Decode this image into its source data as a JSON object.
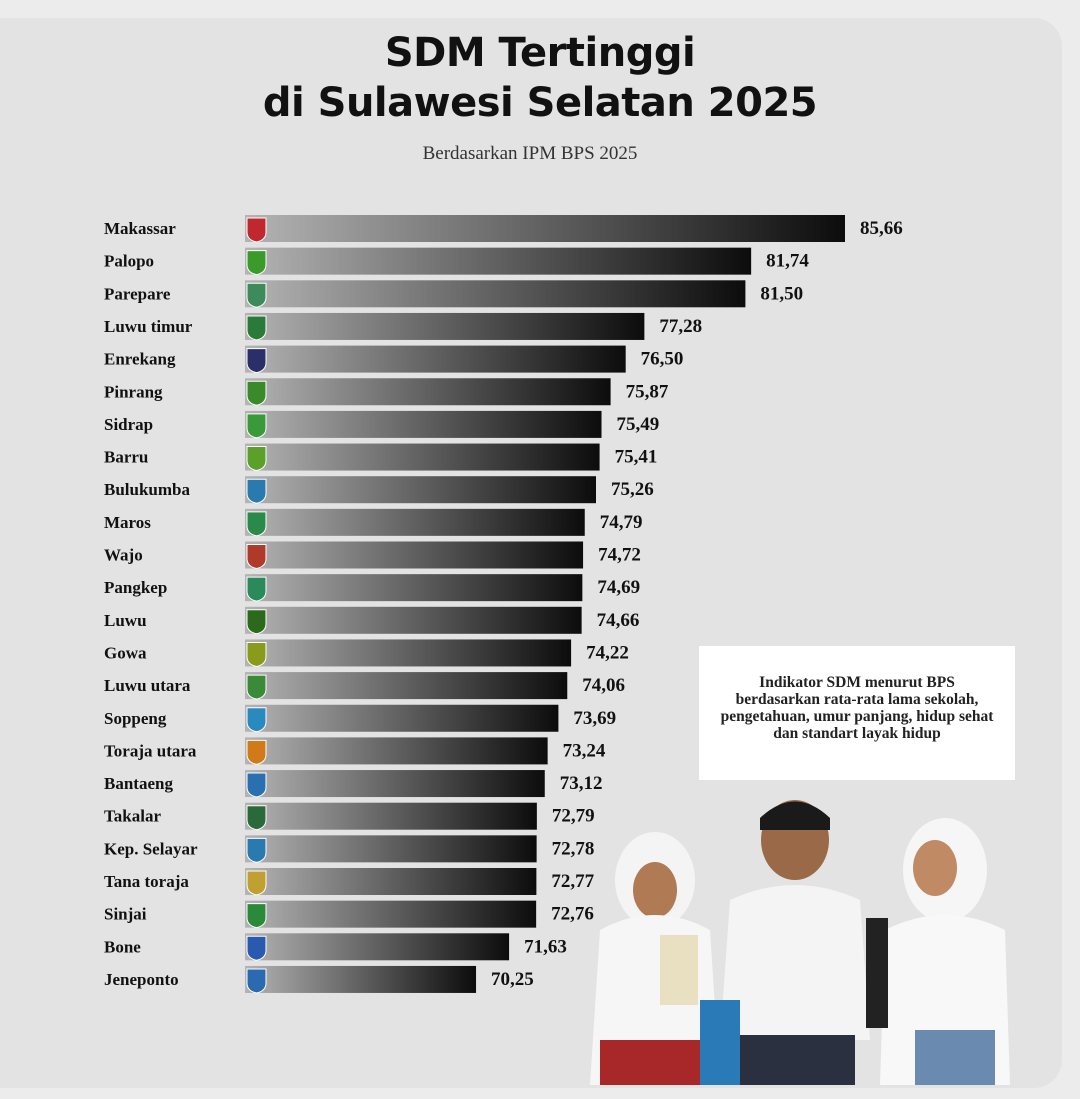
{
  "chart_data": {
    "type": "bar",
    "orientation": "horizontal",
    "title": "SDM Tertinggi\ndi Sulawesi Selatan 2025",
    "title_lines": [
      "SDM Tertinggi",
      "di Sulawesi Selatan 2025"
    ],
    "subtitle": "Berdasarkan IPM BPS 2025",
    "categories": [
      "Makassar",
      "Palopo",
      "Parepare",
      "Luwu timur",
      "Enrekang",
      "Pinrang",
      "Sidrap",
      "Barru",
      "Bulukumba",
      "Maros",
      "Wajo",
      "Pangkep",
      "Luwu",
      "Gowa",
      "Luwu utara",
      "Soppeng",
      "Toraja utara",
      "Bantaeng",
      "Takalar",
      "Kep. Selayar",
      "Tana toraja",
      "Sinjai",
      "Bone",
      "Jeneponto"
    ],
    "values": [
      85.66,
      81.74,
      81.5,
      77.28,
      76.5,
      75.87,
      75.49,
      75.41,
      75.26,
      74.79,
      74.72,
      74.69,
      74.66,
      74.22,
      74.06,
      73.69,
      73.24,
      73.12,
      72.79,
      72.78,
      72.77,
      72.76,
      71.63,
      70.25
    ],
    "value_labels": [
      "85,66",
      "81,74",
      "81,50",
      "77,28",
      "76,50",
      "75,87",
      "75,49",
      "75,41",
      "75,26",
      "74,79",
      "74,72",
      "74,69",
      "74,66",
      "74,22",
      "74,06",
      "73,69",
      "73,24",
      "73,12",
      "72,79",
      "72,78",
      "72,77",
      "72,76",
      "71,63",
      "70,25"
    ],
    "logo_colors": [
      "#c0282d",
      "#3a9a2a",
      "#3d8a5a",
      "#2a7a3a",
      "#2a2f6a",
      "#3a8a2a",
      "#3a9a3a",
      "#5aa02a",
      "#2a7ab0",
      "#2a8a4a",
      "#b03a2a",
      "#2a8a5a",
      "#2a6a1a",
      "#8a9a1a",
      "#3a8a3a",
      "#2a8ac0",
      "#d07a1a",
      "#2a70b0",
      "#2a6a3a",
      "#2a7ab0",
      "#c0a030",
      "#2a8a3a",
      "#2a5ab0",
      "#2a6ab0"
    ],
    "xlim": [
      60.6,
      85.66
    ],
    "bar_gradient": [
      "#b4b4b4",
      "#0c0c0c"
    ],
    "grid": false,
    "xlabel": "",
    "ylabel": ""
  },
  "note": {
    "lines": [
      "Indikator SDM menurut BPS",
      "berdasarkan rata-rata lama sekolah,",
      "pengetahuan, umur panjang, hidup sehat",
      "dan standart layak hidup"
    ]
  }
}
